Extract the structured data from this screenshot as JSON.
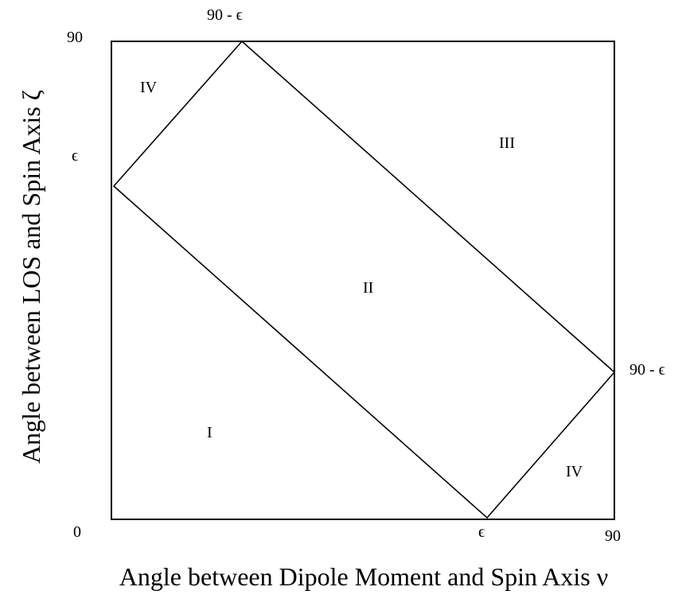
{
  "colors": {
    "background": "#ffffff",
    "line": "#000000",
    "text": "#000000"
  },
  "axes": {
    "x_title": "Angle between Dipole Moment and Spin Axis ν",
    "y_title": "Angle between LOS and Spin Axis ζ",
    "origin_label": "0",
    "x_max_label": "90",
    "y_max_label": "90",
    "x_epsilon_label": "ϵ",
    "y_epsilon_label": "ϵ",
    "top_corner_label": "90 - ϵ",
    "right_corner_label": "90 - ϵ"
  },
  "regions": {
    "region_1": "I",
    "region_2": "II",
    "region_3": "III",
    "region_4_top_left": "IV",
    "region_4_bottom_right": "IV"
  }
}
